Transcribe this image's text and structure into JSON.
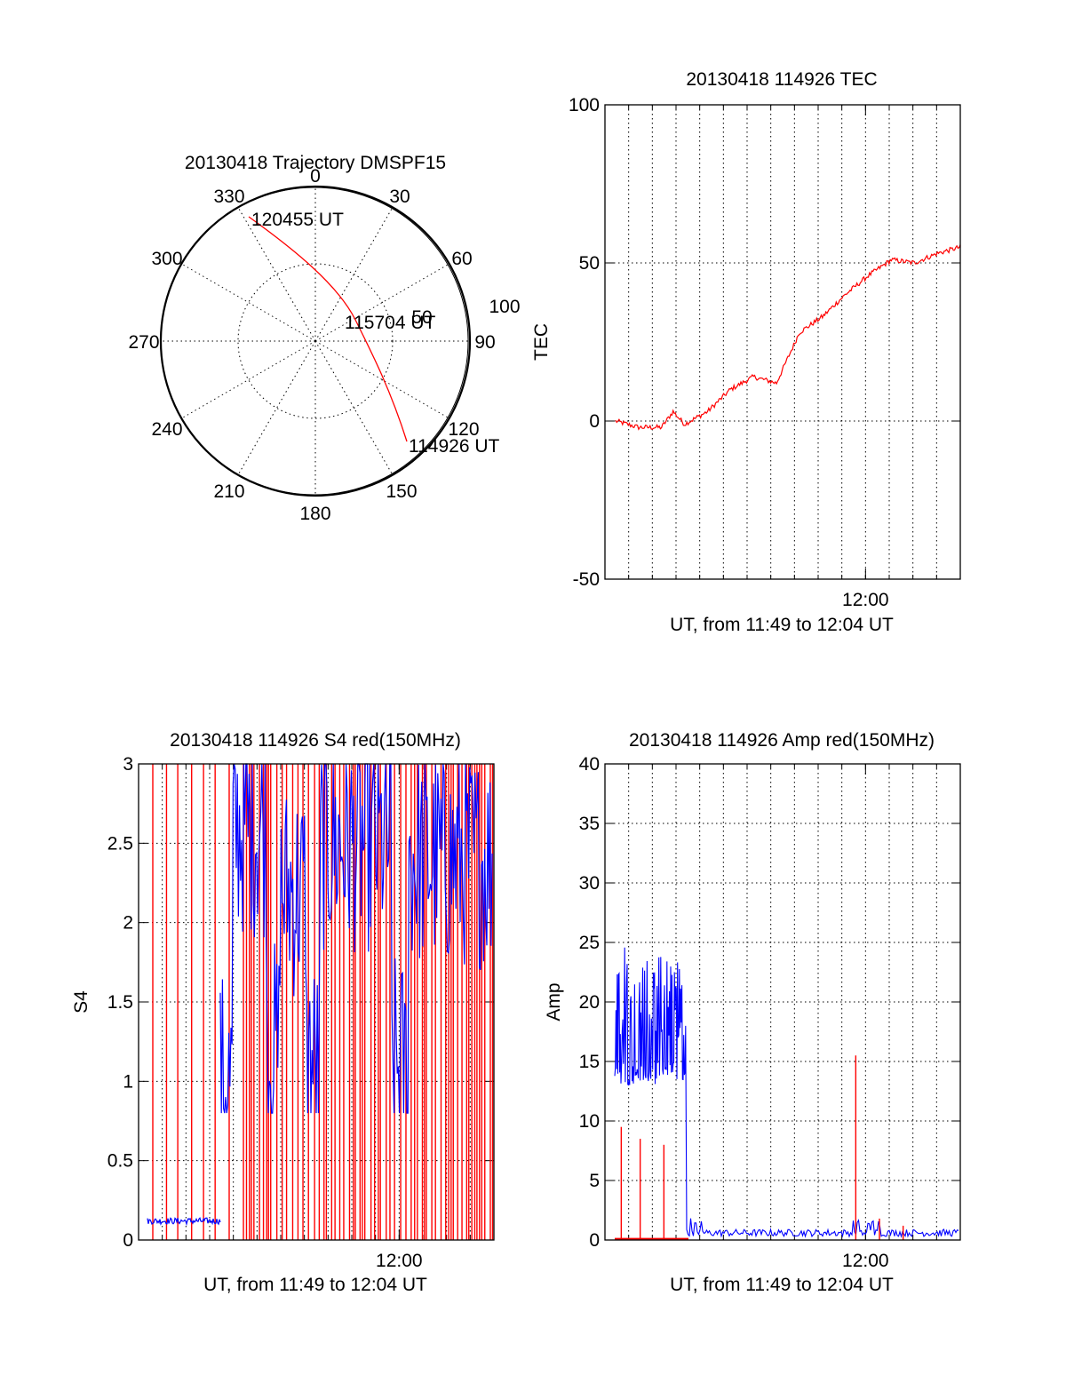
{
  "colors": {
    "red": "#ff0000",
    "blue": "#0000ff",
    "axis": "#000000"
  },
  "chart_data": [
    {
      "id": "trajectory",
      "type": "polar",
      "title": "20130418 Trajectory DMSPF15",
      "azimuth_ticks": [
        "0",
        "30",
        "60",
        "90",
        "120",
        "150",
        "180",
        "210",
        "240",
        "270",
        "300",
        "330"
      ],
      "radius_ticks": [
        "50",
        "100"
      ],
      "rlim": [
        0,
        100
      ],
      "grid": true,
      "annotations": {
        "end": "120455 UT",
        "mid": "115704 UT",
        "start": "114926 UT"
      },
      "series": [
        {
          "color": "red",
          "points": [
            [
              114926,
              150,
              88
            ],
            [
              115400,
              145,
              55
            ],
            [
              115704,
              140,
              30
            ],
            [
              120000,
              330,
              30
            ],
            [
              120455,
              332,
              98
            ]
          ]
        }
      ]
    },
    {
      "id": "tec",
      "type": "line",
      "title": "20130418 114926 TEC",
      "xlabel": "UT, from 11:49 to 12:04 UT",
      "ylabel": "TEC",
      "xlim": [
        "11:49",
        "12:04"
      ],
      "ylim": [
        -50,
        100
      ],
      "yticks": [
        "-50",
        "0",
        "50",
        "100"
      ],
      "xticks": [
        "12:00"
      ],
      "grid": true,
      "series": [
        {
          "color": "red",
          "x": [
            "11:49",
            "11:50",
            "11:51",
            "11:51.5",
            "11:52",
            "11:53",
            "11:54",
            "11:55",
            "11:56",
            "11:56.5",
            "11:57",
            "11:58",
            "11:59",
            "12:00",
            "12:01",
            "12:02",
            "12:03",
            "12:04"
          ],
          "y": [
            0,
            -2,
            -2,
            3,
            -1,
            3,
            10,
            14,
            12,
            20,
            28,
            33,
            40,
            46,
            51,
            50,
            53,
            55
          ]
        }
      ]
    },
    {
      "id": "s4",
      "type": "line",
      "title": "20130418 114926 S4 red(150MHz)",
      "xlabel": "UT, from 11:49 to 12:04 UT",
      "ylabel": "S4",
      "xlim": [
        "11:49",
        "12:04"
      ],
      "ylim": [
        0,
        3
      ],
      "yticks": [
        "0",
        "0.5",
        "1",
        "1.5",
        "2",
        "2.5",
        "3"
      ],
      "xticks": [
        "12:00"
      ],
      "grid": true,
      "series": [
        {
          "color": "blue",
          "description_values": {
            "early_level": 0.12,
            "late_range": [
              0.8,
              3.0
            ]
          }
        },
        {
          "color": "red",
          "style": "vertical spikes from 0 to 3"
        }
      ]
    },
    {
      "id": "amp",
      "type": "line",
      "title": "20130418 114926 Amp red(150MHz)",
      "xlabel": "UT, from 11:49 to 12:04 UT",
      "ylabel": "Amp",
      "xlim": [
        "11:49",
        "12:04"
      ],
      "ylim": [
        0,
        40
      ],
      "yticks": [
        "0",
        "5",
        "10",
        "15",
        "20",
        "25",
        "30",
        "35",
        "40"
      ],
      "xticks": [
        "12:00"
      ],
      "grid": true,
      "series": [
        {
          "color": "blue",
          "early_range": [
            11,
            26
          ],
          "late_level": 0.3
        },
        {
          "color": "red",
          "spikes": [
            [
              0.5,
              9.5
            ],
            [
              1.3,
              8.5
            ],
            [
              2.3,
              8.0
            ],
            [
              10.4,
              15.5
            ],
            [
              11.4,
              1.8
            ],
            [
              12.4,
              1.2
            ]
          ]
        }
      ]
    }
  ]
}
